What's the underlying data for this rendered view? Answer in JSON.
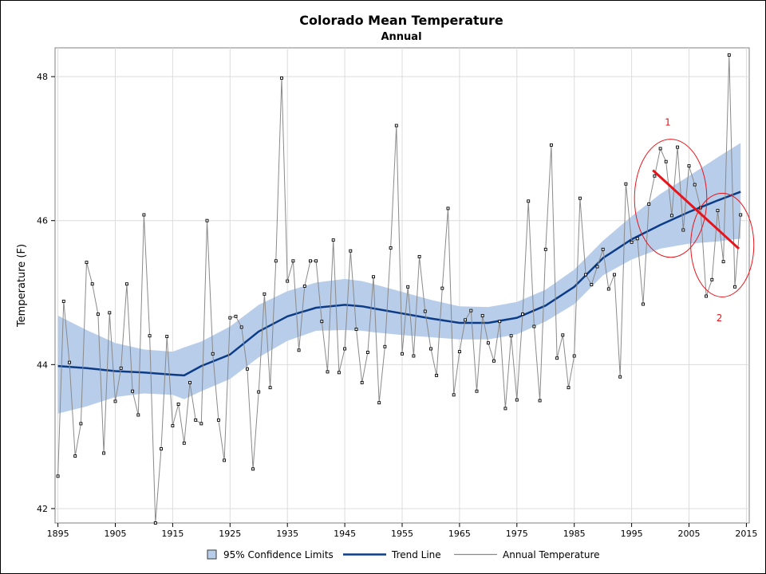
{
  "chart_data": {
    "type": "line",
    "title": "Colorado Mean Temperature",
    "subtitle": "Annual",
    "ylabel": "Temperature (F)",
    "xlabel": "",
    "xlim": [
      1894.5,
      2015.5
    ],
    "ylim": [
      41.8,
      48.4
    ],
    "x_ticks": [
      1895,
      1905,
      1915,
      1925,
      1935,
      1945,
      1955,
      1965,
      1975,
      1985,
      1995,
      2005,
      2015
    ],
    "y_ticks": [
      42,
      44,
      46,
      48
    ],
    "grid": true,
    "legend_position": "bottom",
    "legend": [
      "95% Confidence Limits",
      "Trend Line",
      "Annual Temperature"
    ],
    "colors": {
      "band": "#b8cde9",
      "trend": "#0c3c87",
      "annual": "#8a8a8a",
      "marker": "#000000",
      "annotation": "#e8141a",
      "grid": "#dcdcdc"
    },
    "annual_temperature": {
      "x": [
        1895,
        1896,
        1897,
        1898,
        1899,
        1900,
        1901,
        1902,
        1903,
        1904,
        1905,
        1906,
        1907,
        1908,
        1909,
        1910,
        1911,
        1912,
        1913,
        1914,
        1915,
        1916,
        1917,
        1918,
        1919,
        1920,
        1921,
        1922,
        1923,
        1924,
        1925,
        1926,
        1927,
        1928,
        1929,
        1930,
        1931,
        1932,
        1933,
        1934,
        1935,
        1936,
        1937,
        1938,
        1939,
        1940,
        1941,
        1942,
        1943,
        1944,
        1945,
        1946,
        1947,
        1948,
        1949,
        1950,
        1951,
        1952,
        1953,
        1954,
        1955,
        1956,
        1957,
        1958,
        1959,
        1960,
        1961,
        1962,
        1963,
        1964,
        1965,
        1966,
        1967,
        1968,
        1969,
        1970,
        1971,
        1972,
        1973,
        1974,
        1975,
        1976,
        1977,
        1978,
        1979,
        1980,
        1981,
        1982,
        1983,
        1984,
        1985,
        1986,
        1987,
        1988,
        1989,
        1990,
        1991,
        1992,
        1993,
        1994,
        1995,
        1996,
        1997,
        1998,
        1999,
        2000,
        2001,
        2002,
        2003,
        2004,
        2005,
        2006,
        2007,
        2008,
        2009,
        2010,
        2011,
        2012,
        2013,
        2014
      ],
      "y": [
        42.45,
        44.88,
        44.03,
        42.73,
        43.18,
        45.42,
        45.12,
        44.7,
        42.77,
        44.72,
        43.49,
        43.95,
        45.12,
        43.63,
        43.3,
        46.08,
        44.4,
        41.8,
        42.83,
        44.39,
        43.15,
        43.45,
        42.91,
        43.75,
        43.23,
        43.18,
        46.0,
        44.15,
        43.23,
        42.67,
        44.65,
        44.67,
        44.52,
        43.94,
        42.55,
        43.62,
        44.98,
        43.68,
        45.44,
        47.98,
        45.16,
        45.44,
        44.2,
        45.09,
        45.44,
        45.44,
        44.6,
        43.9,
        45.73,
        43.89,
        44.22,
        45.58,
        44.49,
        43.75,
        44.17,
        45.22,
        43.47,
        44.25,
        45.62,
        47.32,
        44.15,
        45.08,
        44.12,
        45.5,
        44.74,
        44.22,
        43.85,
        45.06,
        46.17,
        43.58,
        44.18,
        44.62,
        44.75,
        43.63,
        44.68,
        44.3,
        44.05,
        44.6,
        43.39,
        44.4,
        43.51,
        44.7,
        46.27,
        44.53,
        43.5,
        45.6,
        47.05,
        44.09,
        44.41,
        43.68,
        44.12,
        46.31,
        45.25,
        45.11,
        45.36,
        45.6,
        45.05,
        45.25,
        43.83,
        46.51,
        45.7,
        45.75,
        44.84,
        46.23,
        46.62,
        47.0,
        46.82,
        46.07,
        47.02,
        45.87,
        46.76,
        46.5,
        46.18,
        44.95,
        45.18,
        46.14,
        45.43,
        48.3,
        45.08,
        46.08
      ]
    },
    "trend_line": {
      "x": [
        1895,
        1900,
        1905,
        1910,
        1915,
        1917,
        1920,
        1925,
        1930,
        1935,
        1940,
        1945,
        1948,
        1950,
        1955,
        1960,
        1965,
        1970,
        1975,
        1980,
        1985,
        1990,
        1995,
        2000,
        2005,
        2010,
        2014
      ],
      "y": [
        43.98,
        43.95,
        43.91,
        43.89,
        43.86,
        43.85,
        43.98,
        44.14,
        44.46,
        44.67,
        44.79,
        44.83,
        44.81,
        44.78,
        44.71,
        44.64,
        44.58,
        44.58,
        44.65,
        44.82,
        45.08,
        45.48,
        45.74,
        45.94,
        46.12,
        46.28,
        46.4
      ]
    },
    "confidence_band": {
      "x": [
        1895,
        1900,
        1905,
        1910,
        1915,
        1917,
        1920,
        1925,
        1930,
        1935,
        1940,
        1945,
        1948,
        1950,
        1955,
        1960,
        1965,
        1970,
        1975,
        1980,
        1985,
        1990,
        1995,
        2000,
        2005,
        2010,
        2014
      ],
      "upper": [
        44.68,
        44.48,
        44.3,
        44.21,
        44.18,
        44.24,
        44.32,
        44.53,
        44.83,
        45.02,
        45.14,
        45.19,
        45.16,
        45.12,
        45.01,
        44.9,
        44.81,
        44.8,
        44.87,
        45.04,
        45.32,
        45.72,
        46.06,
        46.37,
        46.62,
        46.88,
        47.08
      ],
      "lower": [
        43.32,
        43.42,
        43.55,
        43.6,
        43.58,
        43.52,
        43.63,
        43.8,
        44.1,
        44.33,
        44.47,
        44.48,
        44.47,
        44.45,
        44.41,
        44.38,
        44.35,
        44.35,
        44.42,
        44.6,
        44.84,
        45.24,
        45.46,
        45.61,
        45.68,
        45.71,
        45.75
      ]
    },
    "annotations": {
      "labels": [
        "1",
        "2"
      ],
      "label_anchors": [
        [
          2001.3,
          47.32
        ],
        [
          2010.3,
          44.6
        ]
      ],
      "ellipses": [
        {
          "cx": 2001.8,
          "cy": 46.31,
          "rx": 6.3,
          "ry": 0.82
        },
        {
          "cx": 2010.8,
          "cy": 45.66,
          "rx": 5.5,
          "ry": 0.72
        }
      ],
      "decline_line": {
        "x": [
          1998.7,
          2013.7
        ],
        "y": [
          46.7,
          45.61
        ]
      }
    }
  }
}
